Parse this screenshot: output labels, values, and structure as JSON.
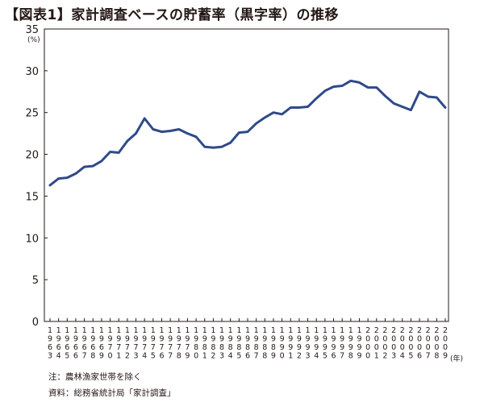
{
  "title": "【図表1】家計調査ベースの貯蓄率（黒字率）の推移",
  "notes": {
    "note": "注：農林漁家世帯を除く",
    "source": "資料：総務省統計局「家計調査」"
  },
  "chart_data": {
    "type": "line",
    "title": "【図表1】家計調査ベースの貯蓄率（黒字率）の推移",
    "xlabel": "(年)",
    "ylabel": "(%)",
    "ylim": [
      0,
      35
    ],
    "yticks": [
      0,
      5,
      10,
      15,
      20,
      25,
      30,
      35
    ],
    "grid": false,
    "line_color": "#2f4a8a",
    "x": [
      1963,
      1964,
      1965,
      1966,
      1967,
      1968,
      1969,
      1970,
      1971,
      1972,
      1973,
      1974,
      1975,
      1976,
      1977,
      1978,
      1979,
      1980,
      1981,
      1982,
      1983,
      1984,
      1985,
      1986,
      1987,
      1988,
      1989,
      1990,
      1991,
      1992,
      1993,
      1994,
      1995,
      1996,
      1997,
      1998,
      1999,
      2000,
      2001,
      2002,
      2003,
      2004,
      2005,
      2006,
      2007,
      2008,
      2009
    ],
    "series": [
      {
        "values": [
          16.3,
          17.1,
          17.2,
          17.7,
          18.5,
          18.6,
          19.2,
          20.3,
          20.2,
          21.6,
          22.5,
          24.3,
          23.0,
          22.7,
          22.8,
          23.0,
          22.5,
          22.1,
          20.9,
          20.8,
          20.9,
          21.4,
          22.6,
          22.7,
          23.7,
          24.4,
          25.0,
          24.8,
          25.6,
          25.6,
          25.7,
          26.7,
          27.6,
          28.1,
          28.2,
          28.8,
          28.6,
          28.0,
          28.0,
          27.0,
          26.1,
          25.7,
          25.3,
          27.5,
          26.9,
          26.8,
          25.6
        ]
      }
    ]
  }
}
